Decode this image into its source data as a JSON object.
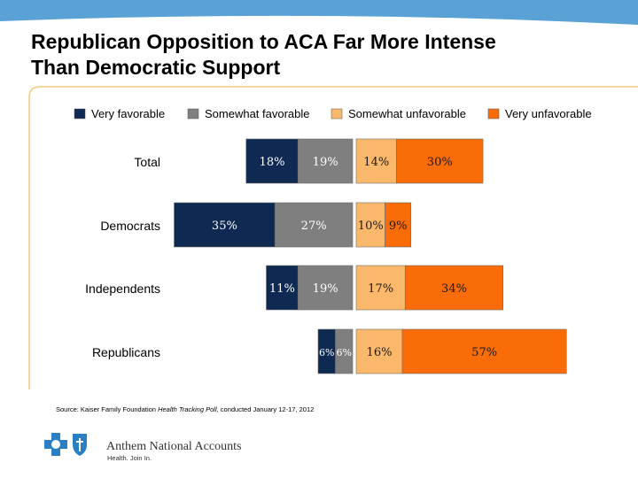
{
  "title": "Republican Opposition to ACA Far More Intense Than Democratic Support",
  "source": {
    "prefix": "Source: Kaiser Family Foundation ",
    "poll": "Health Tracking Poll",
    "suffix": ", conducted January 12-17, 2012"
  },
  "footer": {
    "brand": "Anthem National Accounts",
    "tagline": "Health. Join In."
  },
  "colors": {
    "header_band": "#5aa2d6",
    "frame": "#f3c97a"
  },
  "chart_data": {
    "type": "bar",
    "orientation": "horizontal-diverging",
    "stacked": true,
    "legend_position": "top",
    "categories": [
      "Total",
      "Democrats",
      "Independents",
      "Republicans"
    ],
    "series": [
      {
        "name": "Very favorable",
        "side": "favorable",
        "color": "#0f2a52",
        "values": [
          18,
          35,
          11,
          6
        ]
      },
      {
        "name": "Somewhat favorable",
        "side": "favorable",
        "color": "#7f7f7f",
        "values": [
          19,
          27,
          19,
          6
        ]
      },
      {
        "name": "Somewhat unfavorable",
        "side": "unfavorable",
        "color": "#fbb86b",
        "values": [
          14,
          10,
          17,
          16
        ]
      },
      {
        "name": "Very unfavorable",
        "side": "unfavorable",
        "color": "#f96c08",
        "values": [
          30,
          9,
          34,
          57
        ]
      }
    ]
  }
}
